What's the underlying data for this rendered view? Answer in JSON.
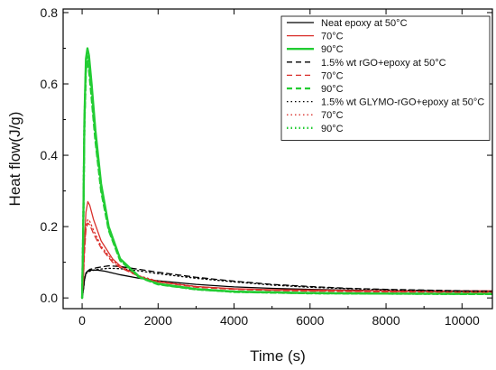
{
  "chart_data": {
    "type": "line",
    "title": "",
    "xlabel": "Time (s)",
    "ylabel": "Heat flow(J/g)",
    "xlim": [
      -500,
      10800
    ],
    "ylim": [
      -0.03,
      0.81
    ],
    "xticks": [
      0,
      2000,
      4000,
      6000,
      8000,
      10000
    ],
    "yticks": [
      0.0,
      0.2,
      0.4,
      0.6,
      0.8
    ],
    "xtick_labels": [
      "0",
      "2000",
      "4000",
      "6000",
      "8000",
      "10000"
    ],
    "ytick_labels": [
      "0.0",
      "0.2",
      "0.4",
      "0.6",
      "0.8"
    ],
    "grid": false,
    "legend_position": "top-right",
    "series": [
      {
        "name": "Neat epoxy at 50°C",
        "color": "#000000",
        "dash": "solid",
        "width": "thin",
        "x": [
          0,
          30,
          60,
          100,
          150,
          250,
          400,
          600,
          800,
          1000,
          1500,
          2000,
          3000,
          4000,
          5000,
          6000,
          7000,
          8000,
          9000,
          10000,
          10800
        ],
        "y": [
          0,
          0.02,
          0.05,
          0.07,
          0.076,
          0.078,
          0.078,
          0.075,
          0.07,
          0.065,
          0.055,
          0.048,
          0.038,
          0.031,
          0.027,
          0.024,
          0.022,
          0.02,
          0.019,
          0.018,
          0.018
        ]
      },
      {
        "name": "70°C",
        "color": "#d9302c",
        "dash": "solid",
        "width": "thin",
        "x": [
          0,
          30,
          60,
          100,
          150,
          200,
          300,
          500,
          800,
          1000,
          1500,
          2000,
          3000,
          4000,
          5000,
          6000,
          7000,
          8000,
          10000,
          10800
        ],
        "y": [
          0,
          0.05,
          0.15,
          0.24,
          0.27,
          0.26,
          0.22,
          0.16,
          0.11,
          0.09,
          0.06,
          0.045,
          0.032,
          0.026,
          0.023,
          0.022,
          0.021,
          0.02,
          0.02,
          0.02
        ]
      },
      {
        "name": "90°C",
        "color": "#22cc33",
        "dash": "solid",
        "width": "thick",
        "x": [
          0,
          30,
          60,
          100,
          140,
          180,
          250,
          350,
          500,
          700,
          1000,
          1500,
          2000,
          3000,
          4000,
          6000,
          8000,
          10000,
          10800
        ],
        "y": [
          0,
          0.2,
          0.5,
          0.67,
          0.7,
          0.68,
          0.6,
          0.47,
          0.32,
          0.2,
          0.11,
          0.06,
          0.04,
          0.025,
          0.018,
          0.014,
          0.012,
          0.012,
          0.012
        ]
      },
      {
        "name": "1.5% wt rGO+epoxy at 50°C",
        "color": "#000000",
        "dash": "dashed",
        "width": "thin",
        "x": [
          0,
          30,
          60,
          100,
          200,
          400,
          700,
          1000,
          1500,
          2000,
          3000,
          4000,
          5000,
          6000,
          7000,
          8000,
          9000,
          10000,
          10800
        ],
        "y": [
          0,
          0.02,
          0.05,
          0.07,
          0.08,
          0.085,
          0.09,
          0.088,
          0.08,
          0.072,
          0.058,
          0.047,
          0.038,
          0.032,
          0.027,
          0.024,
          0.022,
          0.02,
          0.019
        ]
      },
      {
        "name": "70°C",
        "color": "#d9302c",
        "dash": "dashed",
        "width": "thin",
        "x": [
          0,
          30,
          60,
          100,
          150,
          200,
          300,
          500,
          800,
          1000,
          1500,
          2000,
          3000,
          4000,
          5000,
          6000,
          8000,
          10000,
          10800
        ],
        "y": [
          0,
          0.04,
          0.12,
          0.19,
          0.21,
          0.205,
          0.18,
          0.14,
          0.1,
          0.085,
          0.06,
          0.045,
          0.03,
          0.024,
          0.021,
          0.019,
          0.017,
          0.016,
          0.016
        ]
      },
      {
        "name": "90°C",
        "color": "#22cc33",
        "dash": "dashed",
        "width": "thick",
        "x": [
          0,
          30,
          60,
          100,
          140,
          180,
          250,
          350,
          500,
          700,
          1000,
          1500,
          2000,
          3000,
          4000,
          6000,
          8000,
          10000,
          10800
        ],
        "y": [
          0,
          0.2,
          0.48,
          0.64,
          0.66,
          0.64,
          0.56,
          0.44,
          0.3,
          0.19,
          0.105,
          0.058,
          0.038,
          0.024,
          0.017,
          0.013,
          0.012,
          0.011,
          0.011
        ]
      },
      {
        "name": "1.5% wt GLYMO-rGO+epoxy at 50°C",
        "color": "#000000",
        "dash": "dotted",
        "width": "thin",
        "x": [
          0,
          30,
          60,
          100,
          200,
          400,
          700,
          1000,
          1500,
          2000,
          3000,
          4000,
          5000,
          6000,
          7000,
          8000,
          9000,
          10000,
          10800
        ],
        "y": [
          0,
          0.02,
          0.05,
          0.068,
          0.075,
          0.08,
          0.083,
          0.082,
          0.076,
          0.068,
          0.055,
          0.045,
          0.036,
          0.03,
          0.026,
          0.023,
          0.021,
          0.019,
          0.018
        ]
      },
      {
        "name": "70°C",
        "color": "#d9302c",
        "dash": "dotted",
        "width": "thin",
        "x": [
          0,
          30,
          60,
          100,
          150,
          200,
          300,
          500,
          800,
          1000,
          1500,
          2000,
          3000,
          4000,
          5000,
          6000,
          8000,
          10000,
          10800
        ],
        "y": [
          0,
          0.04,
          0.13,
          0.2,
          0.22,
          0.215,
          0.19,
          0.145,
          0.105,
          0.088,
          0.062,
          0.047,
          0.032,
          0.025,
          0.022,
          0.02,
          0.018,
          0.017,
          0.017
        ]
      },
      {
        "name": "90°C",
        "color": "#22cc33",
        "dash": "dotted",
        "width": "thick",
        "x": [
          0,
          30,
          60,
          100,
          140,
          180,
          250,
          350,
          500,
          700,
          1000,
          1500,
          2000,
          3000,
          4000,
          6000,
          8000,
          10000,
          10800
        ],
        "y": [
          0,
          0.2,
          0.49,
          0.65,
          0.68,
          0.66,
          0.58,
          0.45,
          0.31,
          0.195,
          0.108,
          0.059,
          0.039,
          0.024,
          0.017,
          0.013,
          0.012,
          0.011,
          0.011
        ]
      }
    ]
  }
}
